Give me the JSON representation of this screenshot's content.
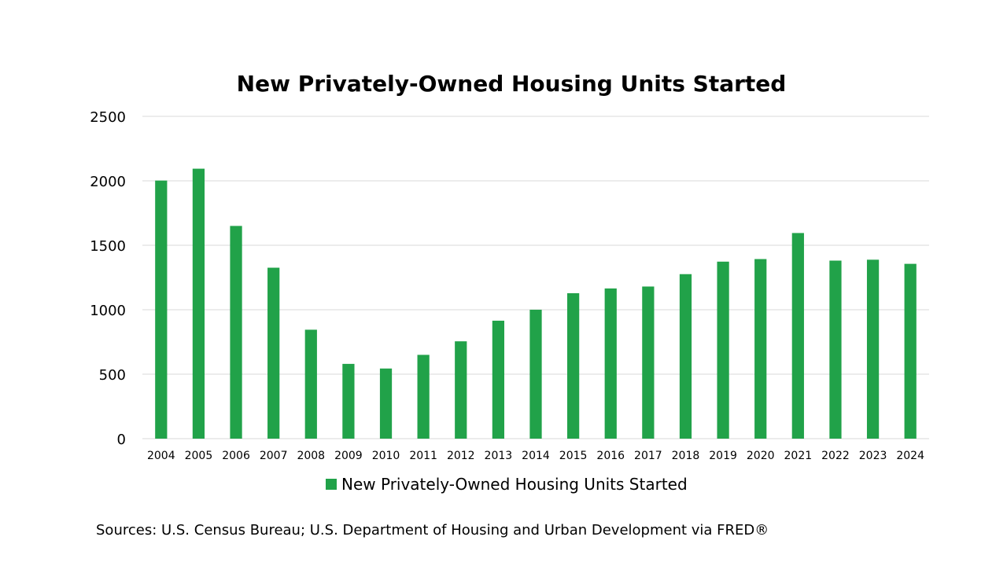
{
  "chart_data": {
    "type": "bar",
    "title": "New Privately-Owned Housing Units Started",
    "xlabel": "",
    "ylabel": "",
    "categories": [
      "2004",
      "2005",
      "2006",
      "2007",
      "2008",
      "2009",
      "2010",
      "2011",
      "2012",
      "2013",
      "2014",
      "2015",
      "2016",
      "2017",
      "2018",
      "2019",
      "2020",
      "2021",
      "2022",
      "2023",
      "2024"
    ],
    "series": [
      {
        "name": "New Privately-Owned Housing Units Started",
        "values": [
          2002,
          2094,
          1650,
          1326,
          845,
          580,
          544,
          650,
          755,
          915,
          1000,
          1128,
          1165,
          1180,
          1276,
          1373,
          1393,
          1595,
          1381,
          1388,
          1356
        ]
      }
    ],
    "ylim": [
      0,
      2500
    ],
    "yticks": [
      "0",
      "500",
      "1000",
      "1500",
      "2000",
      "2500"
    ],
    "grid": true,
    "legend_position": "bottom",
    "bar_color": "#21a249"
  },
  "source_note": "Sources: U.S. Census Bureau; U.S. Department of Housing and Urban Development via FRED®"
}
